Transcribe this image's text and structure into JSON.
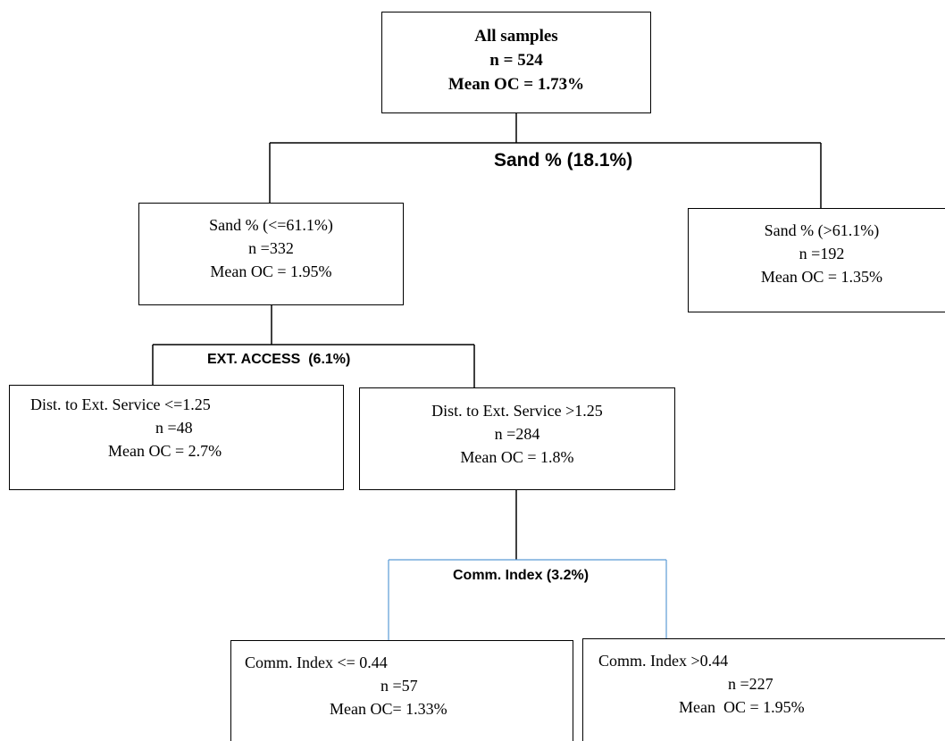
{
  "root": {
    "title": "All samples",
    "n": "n = 524",
    "mean": "Mean OC = 1.73%"
  },
  "split1": {
    "label": "Sand % (18.1%)"
  },
  "left1": {
    "condition": "Sand % (<=61.1%)",
    "n": "n =332",
    "mean": "Mean OC = 1.95%"
  },
  "right1": {
    "condition": "Sand % (>61.1%)",
    "n": "n =192",
    "mean": "Mean OC = 1.35%"
  },
  "split2": {
    "label": "EXT. ACCESS  (6.1%)"
  },
  "left2": {
    "condition": "Dist. to Ext. Service <=1.25",
    "n": "n =48",
    "mean": "Mean OC = 2.7%"
  },
  "right2": {
    "condition": "Dist. to Ext. Service >1.25",
    "n": "n =284",
    "mean": "Mean OC = 1.8%"
  },
  "split3": {
    "label": "Comm. Index (3.2%)"
  },
  "left3": {
    "condition": "Comm. Index <= 0.44",
    "n": "n =57",
    "mean": "Mean OC= 1.33%"
  },
  "right3": {
    "condition": "Comm. Index >0.44",
    "n": "n =227",
    "mean": "Mean  OC = 1.95%"
  },
  "colors": {
    "line": "#000000",
    "split3_line": "#5b9bd5"
  }
}
